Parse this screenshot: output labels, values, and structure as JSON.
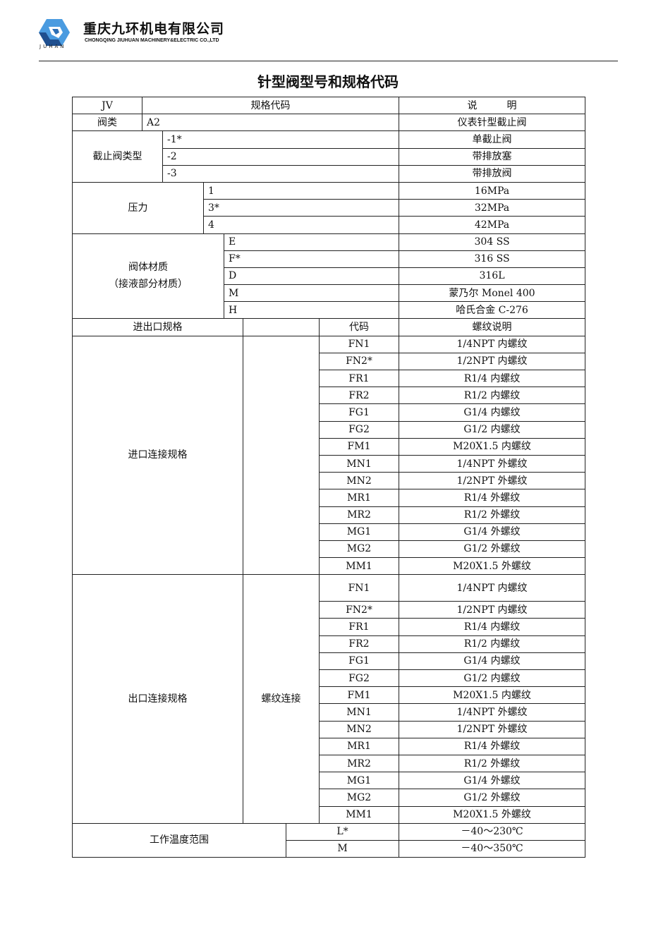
{
  "header": {
    "company_cn": "重庆九环机电有限公司",
    "company_en": "CHONGQING JIUHUAN MACHINERY&ELECTRIC CO.,LTD",
    "logo_text": "JUHAN",
    "brand_color": "#2d6fb5"
  },
  "title": "针型阀型号和规格代码",
  "table": {
    "head": {
      "c1": "JV",
      "c2": "规格代码",
      "c3": "说　　　明"
    },
    "valve_class": {
      "label": "阀类",
      "code": "A2",
      "desc": "仪表针型截止阀"
    },
    "stop_type": {
      "label": "截止阀类型",
      "rows": [
        {
          "code": "-1*",
          "desc": "单截止阀"
        },
        {
          "code": "-2",
          "desc": "带排放塞"
        },
        {
          "code": "-3",
          "desc": "带排放阀"
        }
      ]
    },
    "pressure": {
      "label": "压力",
      "rows": [
        {
          "code": "1",
          "desc": "16MPa"
        },
        {
          "code": "3*",
          "desc": "32MPa"
        },
        {
          "code": "4",
          "desc": "42MPa"
        }
      ]
    },
    "material": {
      "label": "阀体材质",
      "label2": "（接液部分材质）",
      "rows": [
        {
          "code": "E",
          "desc": "304  SS"
        },
        {
          "code": "F*",
          "desc": "316  SS"
        },
        {
          "code": "D",
          "desc": "316L"
        },
        {
          "code": "M",
          "desc": "蒙乃尔 Monel 400"
        },
        {
          "code": "H",
          "desc": "哈氏合金 C-276"
        }
      ]
    },
    "port_head": {
      "label": "进出口规格",
      "code": "代码",
      "desc": "螺纹说明"
    },
    "inlet": {
      "label": "进口连接规格",
      "sub": "",
      "rows": [
        {
          "code": "FN1",
          "desc": "1/4NPT 内螺纹"
        },
        {
          "code": "FN2*",
          "desc": "1/2NPT 内螺纹"
        },
        {
          "code": "FR1",
          "desc": "R1/4 内螺纹"
        },
        {
          "code": "FR2",
          "desc": "R1/2 内螺纹"
        },
        {
          "code": "FG1",
          "desc": "G1/4 内螺纹"
        },
        {
          "code": "FG2",
          "desc": "G1/2 内螺纹"
        },
        {
          "code": "FM1",
          "desc": "M20X1.5 内螺纹"
        },
        {
          "code": "MN1",
          "desc": "1/4NPT 外螺纹"
        },
        {
          "code": "MN2",
          "desc": "1/2NPT 外螺纹"
        },
        {
          "code": "MR1",
          "desc": "R1/4 外螺纹"
        },
        {
          "code": "MR2",
          "desc": "R1/2 外螺纹"
        },
        {
          "code": "MG1",
          "desc": "G1/4 外螺纹"
        },
        {
          "code": "MG2",
          "desc": "G1/2 外螺纹"
        },
        {
          "code": "MM1",
          "desc": "M20X1.5 外螺纹"
        }
      ]
    },
    "outlet": {
      "label": "出口连接规格",
      "sub": "螺纹连接",
      "rows": [
        {
          "code": "FN1",
          "desc": "1/4NPT 内螺纹"
        },
        {
          "code": "FN2*",
          "desc": "1/2NPT 内螺纹"
        },
        {
          "code": "FR1",
          "desc": "R1/4 内螺纹"
        },
        {
          "code": "FR2",
          "desc": "R1/2 内螺纹"
        },
        {
          "code": "FG1",
          "desc": "G1/4 内螺纹"
        },
        {
          "code": "FG2",
          "desc": "G1/2 内螺纹"
        },
        {
          "code": "FM1",
          "desc": "M20X1.5 内螺纹"
        },
        {
          "code": "MN1",
          "desc": "1/4NPT 外螺纹"
        },
        {
          "code": "MN2",
          "desc": "1/2NPT 外螺纹"
        },
        {
          "code": "MR1",
          "desc": "R1/4 外螺纹"
        },
        {
          "code": "MR2",
          "desc": "R1/2 外螺纹"
        },
        {
          "code": "MG1",
          "desc": "G1/4 外螺纹"
        },
        {
          "code": "MG2",
          "desc": "G1/2 外螺纹"
        },
        {
          "code": "MM1",
          "desc": "M20X1.5 外螺纹"
        }
      ]
    },
    "temperature": {
      "label": "工作温度范围",
      "rows": [
        {
          "code": "L*",
          "desc": "－40～230℃"
        },
        {
          "code": "M",
          "desc": "－40～350℃"
        }
      ]
    }
  }
}
